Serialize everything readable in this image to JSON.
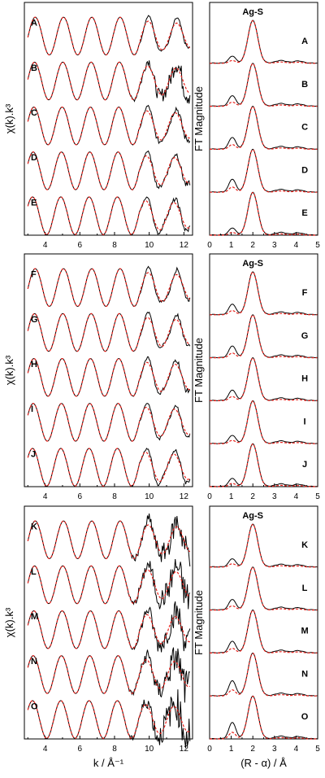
{
  "chart_data": {
    "type": "line",
    "groups": [
      {
        "exafs": {
          "xlabel": "k / Å⁻¹",
          "ylabel": "χ(k).k³",
          "xlim": [
            2.8,
            12.5
          ],
          "xticks": [
            4,
            6,
            8,
            10,
            12
          ],
          "series": [
            {
              "label": "A",
              "noise": 0.05
            },
            {
              "label": "B",
              "noise": 0.35
            },
            {
              "label": "C",
              "noise": 0.12
            },
            {
              "label": "D",
              "noise": 0.1
            },
            {
              "label": "E",
              "noise": 0.08
            }
          ]
        },
        "ft": {
          "xlabel": "(R - α) / Å",
          "ylabel": "FT Magnitude",
          "peak_label": "Ag-S",
          "peak_r": 2.0,
          "xlim": [
            0,
            5
          ],
          "xticks": [
            0,
            1,
            2,
            3,
            4,
            5
          ],
          "series": [
            {
              "label": "A",
              "side_peak": 0.3
            },
            {
              "label": "B",
              "side_peak": 0.45
            },
            {
              "label": "C",
              "side_peak": 0.5
            },
            {
              "label": "D",
              "side_peak": 0.55
            },
            {
              "label": "E",
              "side_peak": 0.3
            }
          ]
        }
      },
      {
        "exafs": {
          "xlabel": "k / Å⁻¹",
          "ylabel": "χ(k).k³",
          "xlim": [
            2.8,
            12.5
          ],
          "xticks": [
            4,
            6,
            8,
            10,
            12
          ],
          "series": [
            {
              "label": "F",
              "noise": 0.06
            },
            {
              "label": "G",
              "noise": 0.07
            },
            {
              "label": "H",
              "noise": 0.08
            },
            {
              "label": "I",
              "noise": 0.06
            },
            {
              "label": "J",
              "noise": 0.08
            }
          ]
        },
        "ft": {
          "xlabel": "(R - α) / Å",
          "ylabel": "FT Magnitude",
          "peak_label": "Ag-S",
          "peak_r": 2.0,
          "xlim": [
            0,
            5
          ],
          "xticks": [
            0,
            1,
            2,
            3,
            4,
            5
          ],
          "series": [
            {
              "label": "F",
              "side_peak": 0.45
            },
            {
              "label": "G",
              "side_peak": 0.5
            },
            {
              "label": "H",
              "side_peak": 0.45
            },
            {
              "label": "I",
              "side_peak": 0.35
            },
            {
              "label": "J",
              "side_peak": 0.35
            }
          ]
        }
      },
      {
        "exafs": {
          "xlabel": "k / Å⁻¹",
          "ylabel": "χ(k).k³",
          "xlim": [
            2.8,
            12.5
          ],
          "xticks": [
            4,
            6,
            8,
            10,
            12
          ],
          "series": [
            {
              "label": "K",
              "noise": 0.45
            },
            {
              "label": "L",
              "noise": 0.5
            },
            {
              "label": "M",
              "noise": 0.45
            },
            {
              "label": "N",
              "noise": 0.55
            },
            {
              "label": "O",
              "noise": 0.6
            }
          ]
        },
        "ft": {
          "xlabel": "(R - α) / Å",
          "ylabel": "FT Magnitude",
          "peak_label": "Ag-S",
          "peak_r": 2.0,
          "xlim": [
            0,
            5
          ],
          "xticks": [
            0,
            1,
            2,
            3,
            4,
            5
          ],
          "series": [
            {
              "label": "K",
              "side_peak": 0.35
            },
            {
              "label": "L",
              "side_peak": 0.45
            },
            {
              "label": "M",
              "side_peak": 0.5
            },
            {
              "label": "N",
              "side_peak": 0.65
            },
            {
              "label": "O",
              "side_peak": 0.7
            }
          ]
        }
      }
    ],
    "legend": {
      "experimental_color": "#000000",
      "fit_color": "#e8201a"
    }
  }
}
